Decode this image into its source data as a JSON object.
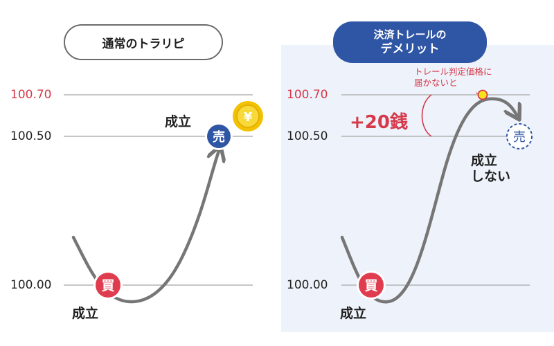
{
  "left_panel": {
    "title": "通常のトラリピ",
    "prices": {
      "p1": "100.70",
      "p2": "100.50",
      "p3": "100.00"
    },
    "buy_badge": "買",
    "sell_badge": "売",
    "buy_fill_label": "成立",
    "sell_fill_label": "成立",
    "coin_symbol": "¥"
  },
  "right_panel": {
    "title_line1": "決済トレールの",
    "title_line2": "デメリット",
    "prices": {
      "p1": "100.70",
      "p2": "100.50",
      "p3": "100.00"
    },
    "note_line1": "トレール判定価格に",
    "note_line2": "届かないと",
    "gain": "+20銭",
    "buy_badge": "買",
    "sell_badge": "売",
    "buy_fill_label": "成立",
    "not_filled_line1": "成立",
    "not_filled_line2": "しない"
  },
  "colors": {
    "price_red": "#d6394a",
    "buy_red": "#e03c4f",
    "sell_blue": "#2f55a5",
    "coin_gold": "#f2c200",
    "panel_bg": "#eef2fa",
    "curve_gray": "#767676"
  }
}
